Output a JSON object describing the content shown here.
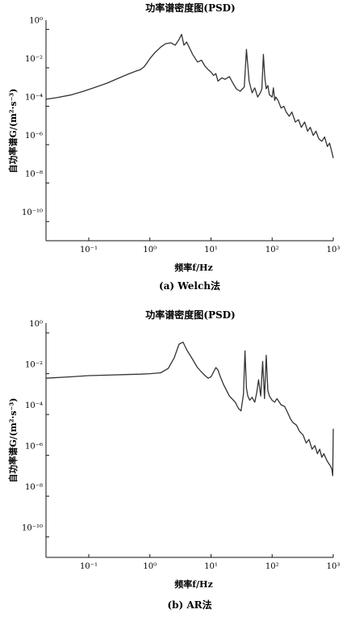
{
  "chart_data": [
    {
      "type": "line",
      "panel_caption": "(a) Welch法",
      "title": "功率谱密度图(PSD)",
      "xlabel": "频率f/Hz",
      "ylabel": "自功率谱G/(m²·s⁻³)",
      "x_scale": "log",
      "y_scale": "log",
      "xlim": [
        0.02,
        1000
      ],
      "ylim": [
        1e-11,
        3
      ],
      "x_ticks": [
        0.1,
        1,
        10,
        100,
        1000
      ],
      "x_tick_labels": [
        "10⁻¹",
        "10⁰",
        "10¹",
        "10²",
        "10³"
      ],
      "y_ticks": [
        1e-10,
        1e-08,
        1e-06,
        0.0001,
        0.01,
        1
      ],
      "y_tick_labels": [
        "10⁻¹⁰",
        "10⁻⁸",
        "10⁻⁶",
        "10⁻⁴",
        "10⁻²",
        "10⁰"
      ],
      "grid": false,
      "series": [
        {
          "color": "#333333",
          "x": [
            0.02,
            0.03,
            0.05,
            0.08,
            0.12,
            0.2,
            0.3,
            0.45,
            0.6,
            0.7,
            0.8,
            0.9,
            1.0,
            1.2,
            1.5,
            1.8,
            2.2,
            2.6,
            3.0,
            3.3,
            3.6,
            4.0,
            4.5,
            5.0,
            6.0,
            7.0,
            8.0,
            9.0,
            10,
            11,
            12,
            13,
            15,
            17,
            20,
            23,
            26,
            30,
            35,
            38,
            42,
            47,
            52,
            58,
            64,
            68,
            72,
            76,
            80,
            85,
            90,
            100,
            105,
            110,
            115,
            125,
            140,
            155,
            170,
            190,
            210,
            240,
            270,
            300,
            340,
            380,
            420,
            470,
            520,
            580,
            650,
            720,
            800,
            870,
            950,
            1000
          ],
          "y": [
            0.00023,
            0.00028,
            0.00038,
            0.00058,
            0.0009,
            0.0016,
            0.0028,
            0.0048,
            0.0068,
            0.008,
            0.011,
            0.018,
            0.03,
            0.06,
            0.12,
            0.18,
            0.2,
            0.15,
            0.3,
            0.55,
            0.15,
            0.22,
            0.1,
            0.05,
            0.02,
            0.025,
            0.012,
            0.008,
            0.006,
            0.004,
            0.005,
            0.002,
            0.003,
            0.0025,
            0.0035,
            0.0015,
            0.0008,
            0.0006,
            0.001,
            0.09,
            0.002,
            0.0005,
            0.0009,
            0.0003,
            0.0005,
            0.0008,
            0.05,
            0.003,
            0.0008,
            0.0012,
            0.0004,
            0.0003,
            0.0009,
            0.0002,
            0.0003,
            0.0002,
            8e-05,
            0.0001,
            5e-05,
            3e-05,
            5e-05,
            1.5e-05,
            2e-05,
            8e-06,
            1.5e-05,
            5e-06,
            8e-06,
            3e-06,
            5e-06,
            2e-06,
            1.5e-06,
            2.5e-06,
            8e-07,
            1.2e-06,
            4e-07,
            2e-07
          ]
        }
      ]
    },
    {
      "type": "line",
      "panel_caption": "(b) AR法",
      "title": "功率谱密度图(PSD)",
      "xlabel": "频率f/Hz",
      "ylabel": "自功率谱G/(m²·s⁻³)",
      "x_scale": "log",
      "y_scale": "log",
      "xlim": [
        0.02,
        1000
      ],
      "ylim": [
        1e-11,
        3
      ],
      "x_ticks": [
        0.1,
        1,
        10,
        100,
        1000
      ],
      "x_tick_labels": [
        "10⁻¹",
        "10⁰",
        "10¹",
        "10²",
        "10³"
      ],
      "y_ticks": [
        1e-10,
        1e-08,
        1e-06,
        0.0001,
        0.01,
        1
      ],
      "y_tick_labels": [
        "10⁻¹⁰",
        "10⁻⁸",
        "10⁻⁶",
        "10⁻⁴",
        "10⁻²",
        "10⁰"
      ],
      "grid": false,
      "series": [
        {
          "color": "#333333",
          "x": [
            0.02,
            0.05,
            0.1,
            0.2,
            0.4,
            0.7,
            1.0,
            1.5,
            2.0,
            2.5,
            3.0,
            3.5,
            4.0,
            5.0,
            6.0,
            7.0,
            8.0,
            9.0,
            10,
            11,
            12,
            13,
            14,
            16,
            18,
            20,
            22,
            25,
            28,
            31,
            34,
            36,
            38,
            40,
            43,
            47,
            52,
            56,
            60,
            65,
            70,
            75,
            80,
            85,
            90,
            100,
            110,
            120,
            140,
            160,
            180,
            200,
            220,
            250,
            280,
            320,
            360,
            400,
            450,
            500,
            550,
            600,
            650,
            700,
            800,
            900,
            950,
            980,
            1000
          ],
          "y": [
            0.006,
            0.007,
            0.008,
            0.0085,
            0.009,
            0.0095,
            0.01,
            0.011,
            0.018,
            0.06,
            0.28,
            0.35,
            0.15,
            0.05,
            0.02,
            0.012,
            0.008,
            0.006,
            0.007,
            0.012,
            0.02,
            0.015,
            0.008,
            0.003,
            0.0015,
            0.0008,
            0.0006,
            0.0004,
            0.0002,
            0.00015,
            0.001,
            0.13,
            0.002,
            0.0008,
            0.0005,
            0.0007,
            0.0004,
            0.0012,
            0.005,
            0.0008,
            0.04,
            0.0006,
            0.08,
            0.0015,
            0.0008,
            0.0005,
            0.0004,
            0.0006,
            0.0003,
            0.00025,
            0.00012,
            6e-05,
            4e-05,
            3e-05,
            1.5e-05,
            1e-05,
            4e-06,
            6e-06,
            2e-06,
            3e-06,
            1.2e-06,
            2e-06,
            8e-07,
            1.2e-06,
            5e-07,
            3e-07,
            2e-07,
            1e-07,
            2e-05
          ]
        }
      ]
    }
  ]
}
